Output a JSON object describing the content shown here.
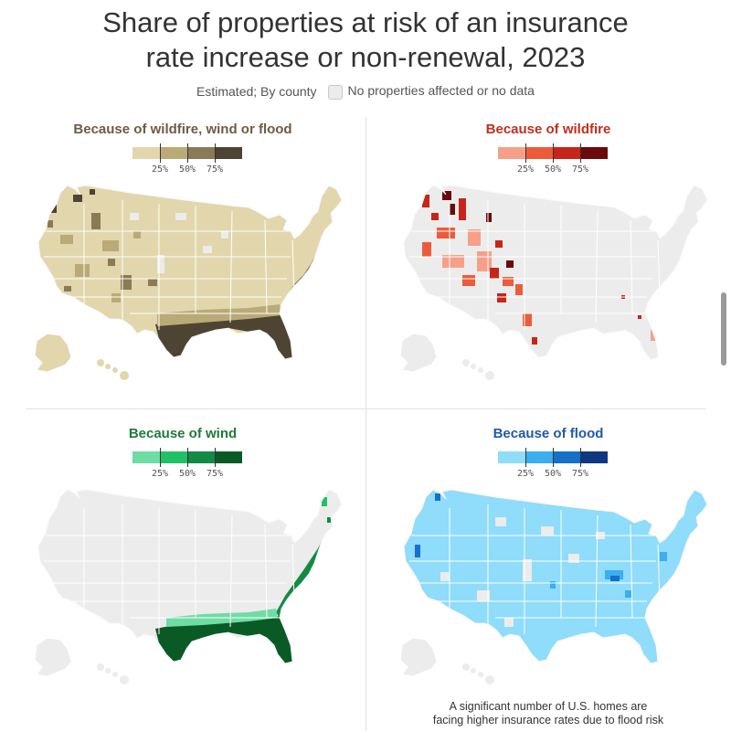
{
  "title_line1": "Share of properties at risk of an insurance",
  "title_line2": "rate increase or non-renewal, 2023",
  "subtitle": "Estimated; By county",
  "nodata_label": "No properties affected or no data",
  "footnote_line1": "A significant number of U.S. homes are",
  "footnote_line2": "facing higher insurance rates due to flood risk",
  "legend_ticks": [
    "25%",
    "50%",
    "75%"
  ],
  "panels": [
    {
      "title": "Because of wildfire, wind or flood",
      "title_color": "#6b5d44",
      "scale": [
        "#e2d6ac",
        "#b9aa78",
        "#8a7a55",
        "#4e4434"
      ],
      "base": "#e2d6ac"
    },
    {
      "title": "Because of wildfire",
      "title_color": "#c1301c",
      "scale": [
        "#f6a08a",
        "#ec5c3b",
        "#c8251a",
        "#6a0a0a"
      ],
      "base": "#ececec"
    },
    {
      "title": "Because of wind",
      "title_color": "#1f7a3a",
      "scale": [
        "#6fdca4",
        "#22c066",
        "#138a45",
        "#0a5a26"
      ],
      "base": "#ececec"
    },
    {
      "title": "Because of flood",
      "title_color": "#1f5aa8",
      "scale": [
        "#8fdcfb",
        "#3aaef0",
        "#1670c9",
        "#0f3782"
      ],
      "base": "#8fdcfb"
    }
  ]
}
